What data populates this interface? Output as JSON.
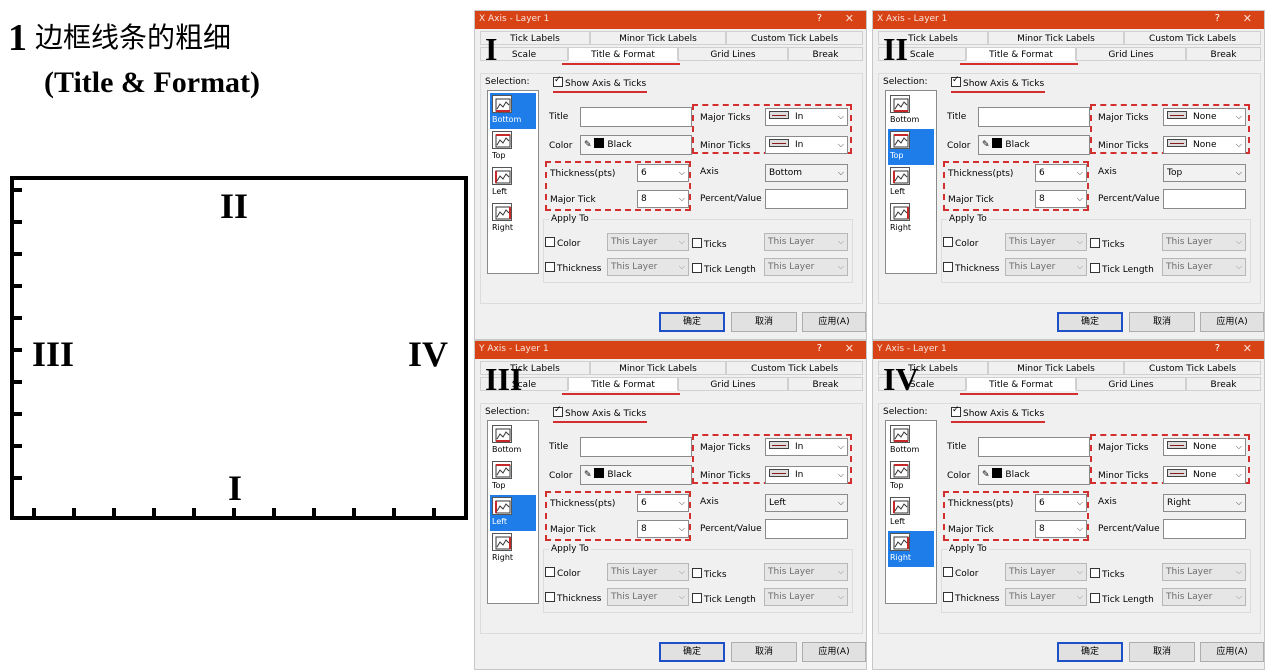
{
  "heading": {
    "number": "1",
    "chinese": "边框线条的粗细",
    "subtitle": "(Title & Format)"
  },
  "frame_labels": {
    "top": "II",
    "left": "III",
    "right": "IV",
    "bottom": "I"
  },
  "tabs_row1": [
    "Tick Labels",
    "Minor Tick Labels",
    "Custom Tick Labels"
  ],
  "tabs_row2": [
    "Scale",
    "Title & Format",
    "Grid Lines",
    "Break"
  ],
  "common": {
    "selection_label": "Selection:",
    "show_axis_label": "Show Axis & Ticks",
    "title_label": "Title",
    "color_label": "Color",
    "color_value": "Black",
    "major_ticks_label": "Major Ticks",
    "minor_ticks_label": "Minor Ticks",
    "thickness_label": "Thickness(pts)",
    "major_tick_label": "Major Tick",
    "axis_label": "Axis",
    "percent_value_label": "Percent/Value",
    "apply_to_label": "Apply To",
    "apply_color": "Color",
    "apply_thickness": "Thickness",
    "apply_ticks": "Ticks",
    "apply_tick_length": "Tick Length",
    "this_layer": "This Layer",
    "ok": "确定",
    "cancel": "取消",
    "apply": "应用(A)",
    "help_icon": "?",
    "close_icon": "✕",
    "selection_items": [
      "Bottom",
      "Top",
      "Left",
      "Right"
    ]
  },
  "dialogs": [
    {
      "id": "I",
      "title": "X Axis - Layer 1",
      "thickness": "6",
      "major_tick": "8",
      "major_ticks": "In",
      "minor_ticks": "In",
      "axis": "Bottom",
      "selected_index": 0
    },
    {
      "id": "II",
      "title": "X Axis - Layer 1",
      "thickness": "6",
      "major_tick": "8",
      "major_ticks": "None",
      "minor_ticks": "None",
      "axis": "Top",
      "selected_index": 1
    },
    {
      "id": "III",
      "title": "Y Axis - Layer 1",
      "thickness": "6",
      "major_tick": "8",
      "major_ticks": "In",
      "minor_ticks": "In",
      "axis": "Left",
      "selected_index": 2
    },
    {
      "id": "IV",
      "title": "Y Axis - Layer 1",
      "thickness": "6",
      "major_tick": "8",
      "major_ticks": "None",
      "minor_ticks": "None",
      "axis": "Right",
      "selected_index": 3
    }
  ],
  "colors": {
    "titlebar": "#d84315",
    "highlight": "#d32f2f",
    "selection": "#1e7de8"
  }
}
